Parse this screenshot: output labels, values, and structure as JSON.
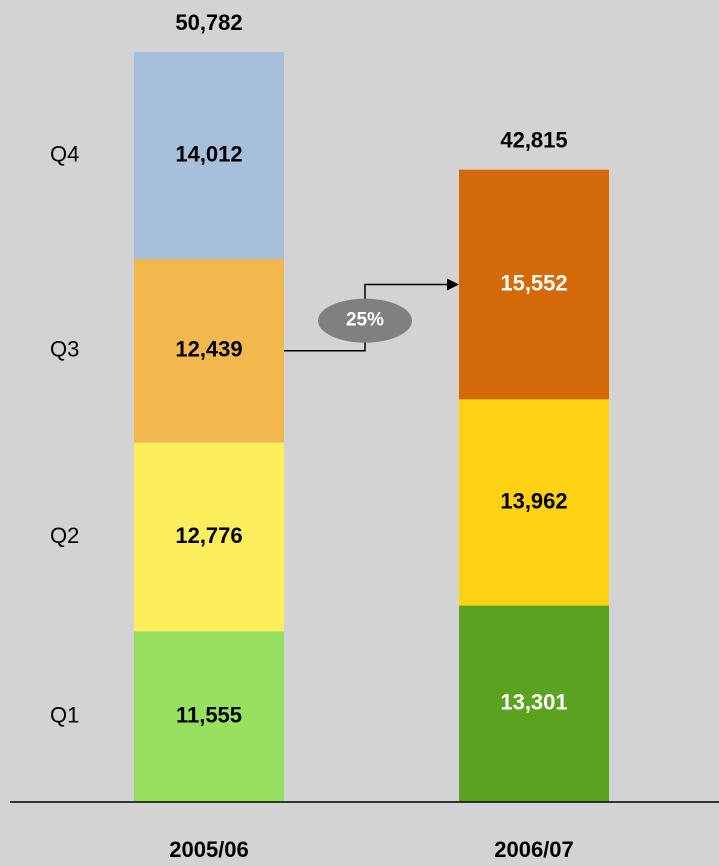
{
  "chart_data": {
    "type": "stacked_bar",
    "categories": [
      "2005/06",
      "2006/07"
    ],
    "series": [
      {
        "name": "Q1",
        "colors": [
          "#98e060",
          "#5aa220"
        ],
        "label_colors": [
          "#000000",
          "#ffffff"
        ],
        "values": [
          11555,
          13301
        ],
        "value_labels": [
          "11,555",
          "13,301"
        ]
      },
      {
        "name": "Q2",
        "colors": [
          "#fdee5e",
          "#ffd214"
        ],
        "label_colors": [
          "#000000",
          "#000000"
        ],
        "values": [
          12776,
          13962
        ],
        "value_labels": [
          "12,776",
          "13,962"
        ]
      },
      {
        "name": "Q3",
        "colors": [
          "#f2b84e",
          "#d4690a"
        ],
        "label_colors": [
          "#000000",
          "#ffffff"
        ],
        "values": [
          12439,
          15552
        ],
        "value_labels": [
          "12,439",
          "15,552"
        ]
      },
      {
        "name": "Q4",
        "colors": [
          "#a6bfdb",
          null
        ],
        "label_colors": [
          "#000000",
          null
        ],
        "values": [
          14012,
          null
        ],
        "value_labels": [
          "14,012",
          null
        ]
      }
    ],
    "totals": [
      50782,
      42815
    ],
    "total_labels": [
      "50,782",
      "42,815"
    ],
    "annotation": "25%"
  }
}
